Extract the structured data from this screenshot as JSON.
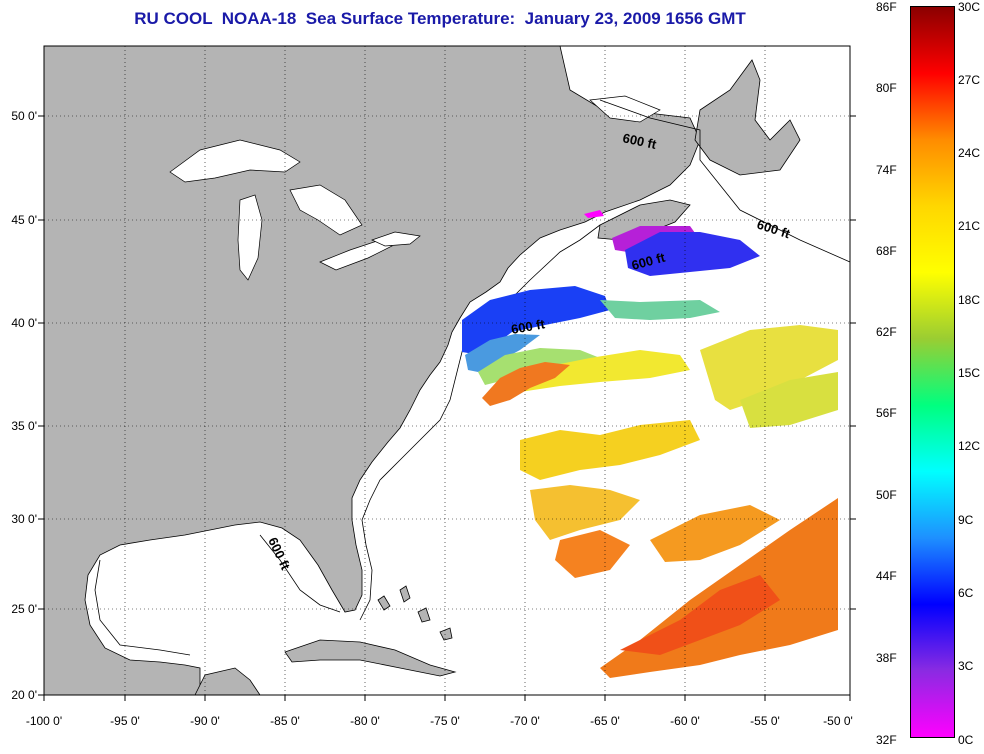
{
  "title": "RU COOL  NOAA-18  Sea Surface Temperature:  January 23, 2009 1656 GMT",
  "map": {
    "lon_labels": [
      "-100 0'",
      "-95 0'",
      "-90 0'",
      "-85 0'",
      "-80 0'",
      "-75 0'",
      "-70 0'",
      "-65 0'",
      "-60 0'",
      "-55 0'",
      "-50 0'"
    ],
    "lat_labels": [
      "50 0'",
      "45 0'",
      "40 0'",
      "35 0'",
      "30 0'",
      "25 0'",
      "20 0'"
    ],
    "contour_labels": [
      "600 ft",
      "600 ft",
      "600 ft",
      "600 ft",
      "600 ft"
    ],
    "land_color": "#b4b4b4",
    "ocean_color": "#ffffff"
  },
  "colorbar": {
    "fahrenheit_labels": [
      "86F",
      "80F",
      "74F",
      "68F",
      "62F",
      "56F",
      "50F",
      "44F",
      "38F",
      "32F"
    ],
    "celsius_labels": [
      "30C",
      "27C",
      "24C",
      "21C",
      "18C",
      "15C",
      "12C",
      "9C",
      "6C",
      "3C",
      "0C"
    ],
    "colors_top_to_bottom": [
      "#8b0000",
      "#ff0000",
      "#ff8c00",
      "#ffd700",
      "#ffff00",
      "#9acd32",
      "#00ff7f",
      "#00ffff",
      "#1e90ff",
      "#0000ff",
      "#8a2be2",
      "#ff00ff"
    ]
  }
}
